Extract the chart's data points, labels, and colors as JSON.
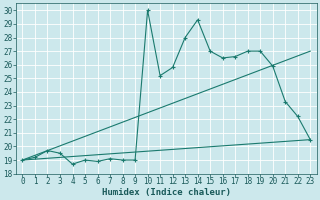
{
  "xlabel": "Humidex (Indice chaleur)",
  "xlim": [
    -0.5,
    23.5
  ],
  "ylim": [
    18,
    30.5
  ],
  "xticks": [
    0,
    1,
    2,
    3,
    4,
    5,
    6,
    7,
    8,
    9,
    10,
    11,
    12,
    13,
    14,
    15,
    16,
    17,
    18,
    19,
    20,
    21,
    22,
    23
  ],
  "yticks": [
    18,
    19,
    20,
    21,
    22,
    23,
    24,
    25,
    26,
    27,
    28,
    29,
    30
  ],
  "bg_color": "#cce8ec",
  "grid_color": "#b0d8dc",
  "line_color": "#1a7a6e",
  "series1_x": [
    0,
    1,
    2,
    3,
    4,
    5,
    6,
    7,
    8,
    9,
    10,
    11,
    12,
    13,
    14,
    15,
    16,
    17,
    18,
    19,
    20,
    21,
    22,
    23
  ],
  "series1_y": [
    19.0,
    19.2,
    19.7,
    19.5,
    18.7,
    19.0,
    18.9,
    19.1,
    19.0,
    19.0,
    30.0,
    25.2,
    25.8,
    28.0,
    29.3,
    27.0,
    26.5,
    26.6,
    27.0,
    27.0,
    25.9,
    23.3,
    22.2,
    20.5
  ],
  "series2_x": [
    0,
    23
  ],
  "series2_y": [
    19.0,
    27.0
  ],
  "series3_x": [
    0,
    23
  ],
  "series3_y": [
    19.0,
    20.5
  ],
  "tick_fontsize": 5.5,
  "xlabel_fontsize": 6.5
}
